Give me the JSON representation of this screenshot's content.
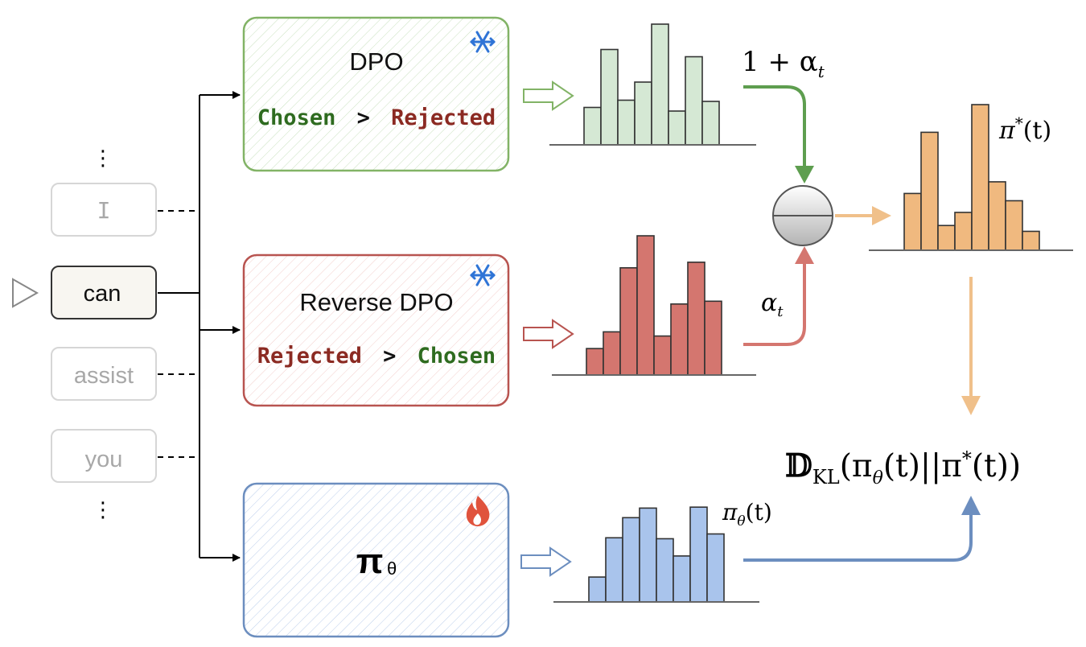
{
  "tokens": {
    "ellipsis_top": "⋮",
    "items": [
      "I",
      "can",
      "assist",
      "you"
    ],
    "ellipsis_bottom": "⋮",
    "active_index": 1
  },
  "boxes": {
    "dpo": {
      "title": "DPO",
      "left": "Chosen",
      "op": ">",
      "right": "Rejected"
    },
    "rdpo": {
      "title": "Reverse DPO",
      "left": "Rejected",
      "op": ">",
      "right": "Chosen"
    },
    "policy": {
      "symbol": "π",
      "subscript": "θ"
    }
  },
  "labels": {
    "green_weight": "1 + α",
    "green_weight_sub": "t",
    "red_weight": "α",
    "red_weight_sub": "t",
    "target": "π",
    "target_sup": "*",
    "target_arg": "(t)",
    "policy_label": "π",
    "policy_sub": "θ",
    "policy_arg": "(t)",
    "kl": "𝔻",
    "kl_sub": "KL",
    "kl_body": "(π",
    "kl_body_sub": "θ",
    "kl_body_rest": "(t)||π",
    "kl_sup": "*",
    "kl_tail": "(t))"
  },
  "histograms": {
    "dpo": [
      0.31,
      0.79,
      0.37,
      0.52,
      1.0,
      0.28,
      0.73,
      0.36
    ],
    "rdpo": [
      0.19,
      0.31,
      0.77,
      1.0,
      0.28,
      0.51,
      0.81,
      0.53
    ],
    "target": [
      0.39,
      0.81,
      0.17,
      0.26,
      1.0,
      0.47,
      0.34,
      0.13
    ],
    "policy": [
      0.26,
      0.67,
      0.88,
      0.98,
      0.66,
      0.48,
      0.99,
      0.71
    ]
  },
  "colors": {
    "green": "#82b366",
    "green_fill": "#d5e8d4",
    "green_text": "#2e6b1f",
    "red": "#b85450",
    "red_fill": "#f8cecc",
    "bar_red": "#d4766f",
    "red_text": "#8b2a22",
    "orange": "#f0c08a",
    "bar_orange": "#f0b97f",
    "blue": "#6c8ebf",
    "blue_fill": "#dae8fc",
    "bar_blue": "#a9c4ec",
    "ice": "#2f74d6",
    "fire": "#e0533d"
  }
}
